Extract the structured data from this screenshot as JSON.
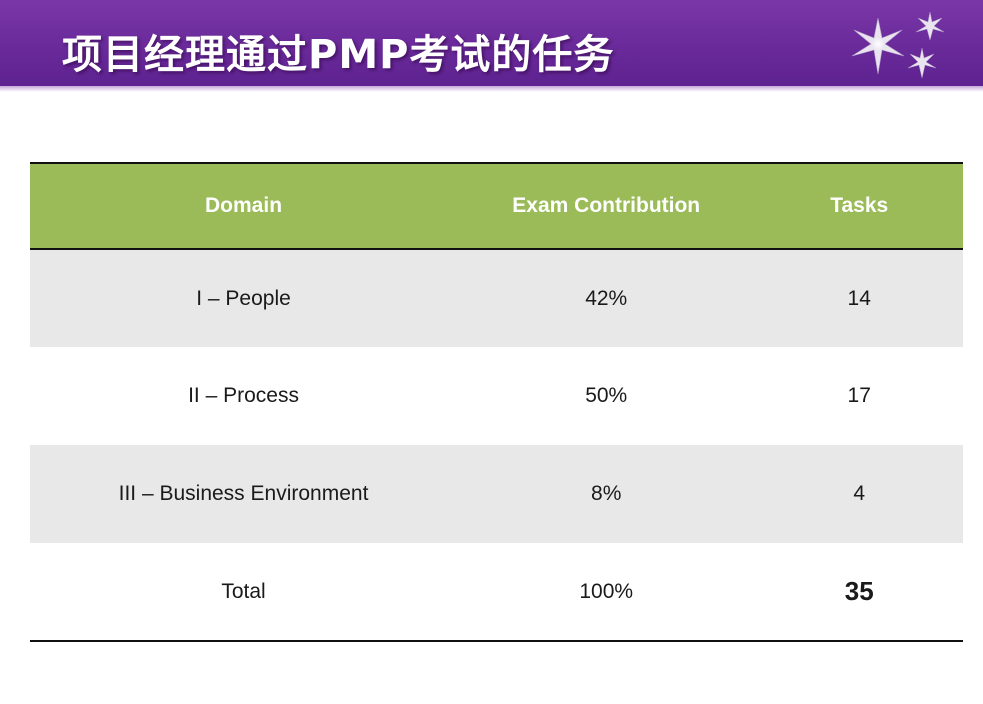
{
  "slide": {
    "title": "项目经理通过PMP考试的任务"
  },
  "table": {
    "headers": [
      "Domain",
      "Exam Contribution",
      "Tasks"
    ],
    "rows": [
      {
        "domain": "I – People",
        "contribution": "42%",
        "tasks": "14"
      },
      {
        "domain": "II – Process",
        "contribution": "50%",
        "tasks": "17"
      },
      {
        "domain": "III – Business Environment",
        "contribution": "8%",
        "tasks": "4"
      }
    ],
    "total": {
      "label": "Total",
      "contribution": "100%",
      "tasks": "35"
    }
  },
  "colors": {
    "title_bar": "#6a2a9a",
    "header_row": "#9bbb59",
    "shaded_row": "#e8e8e9"
  },
  "icons": {
    "decoration": "sparkle-stars-icon"
  }
}
